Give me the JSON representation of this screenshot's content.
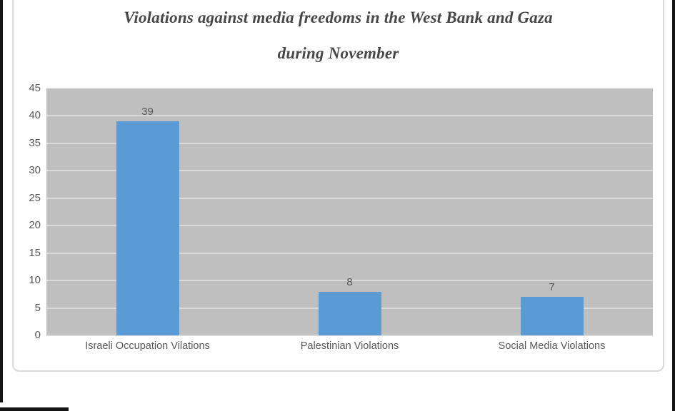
{
  "page": {
    "edge_color": "#141414"
  },
  "chart_data": {
    "type": "bar",
    "title": "Violations against media freedoms in the West Bank and Gaza during November",
    "title_line1": "Violations against media freedoms in the West Bank and Gaza",
    "title_line2": "during November",
    "categories": [
      "Israeli Occupation Vilations",
      "Palestinian Violations",
      "Social Media Violations"
    ],
    "values": [
      39,
      8,
      7
    ],
    "data_labels": [
      "39",
      "8",
      "7"
    ],
    "xlabel": "",
    "ylabel": "",
    "ylim": [
      0,
      45
    ],
    "yticks": [
      0,
      5,
      10,
      15,
      20,
      25,
      30,
      35,
      40,
      45
    ],
    "grid": true,
    "legend_position": "none",
    "colors": {
      "bar": "#5b9bd5",
      "plot_background": "#bfbfbf",
      "gridline": "#d9d9d9",
      "axis_text": "#595959",
      "title_text": "#474747",
      "frame_border": "#d9d9d9"
    }
  }
}
